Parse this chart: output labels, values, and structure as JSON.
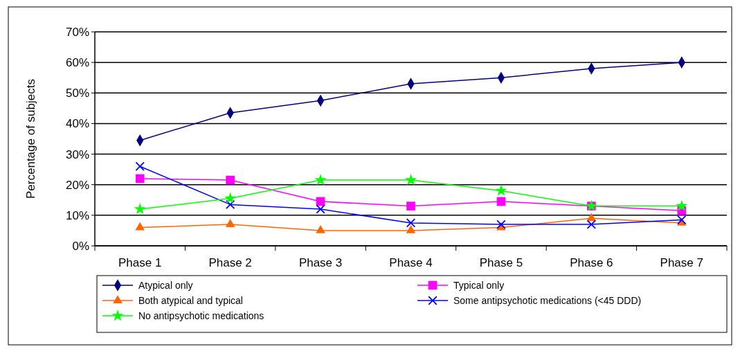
{
  "chart_data": {
    "type": "line",
    "ylabel": "Percentage of subjects",
    "categories": [
      "Phase 1",
      "Phase 2",
      "Phase 3",
      "Phase 4",
      "Phase 5",
      "Phase 6",
      "Phase 7"
    ],
    "ylim": [
      0,
      70
    ],
    "yticks": [
      {
        "value": 0,
        "label": "0%"
      },
      {
        "value": 10,
        "label": "10%"
      },
      {
        "value": 20,
        "label": "20%"
      },
      {
        "value": 30,
        "label": "30%"
      },
      {
        "value": 40,
        "label": "40%"
      },
      {
        "value": 50,
        "label": "50%"
      },
      {
        "value": 60,
        "label": "60%"
      },
      {
        "value": 70,
        "label": "70%"
      }
    ],
    "grid": "y",
    "legend": "bottom",
    "series": [
      {
        "name": "Atypical only",
        "color": "#000080",
        "marker": "diamond",
        "values": [
          34.5,
          43.5,
          47.5,
          53,
          55,
          58,
          60
        ]
      },
      {
        "name": "Typical only",
        "color": "#ff00ff",
        "marker": "square",
        "values": [
          22,
          21.5,
          14.5,
          13,
          14.5,
          13,
          11.5
        ]
      },
      {
        "name": "Both atypical and typical",
        "color": "#ff6600",
        "marker": "triangle",
        "values": [
          6,
          7,
          5,
          5,
          6,
          9,
          7.5
        ]
      },
      {
        "name": "Some antipsychotic medications (<45 DDD)",
        "color": "#0000ff",
        "marker": "cross",
        "values": [
          26,
          13.5,
          12,
          7.5,
          7,
          7,
          8.5
        ]
      },
      {
        "name": "No antipsychotic medications",
        "color": "#00ff00",
        "marker": "star",
        "values": [
          12,
          15.5,
          21.5,
          21.5,
          18,
          13,
          13
        ]
      }
    ]
  }
}
